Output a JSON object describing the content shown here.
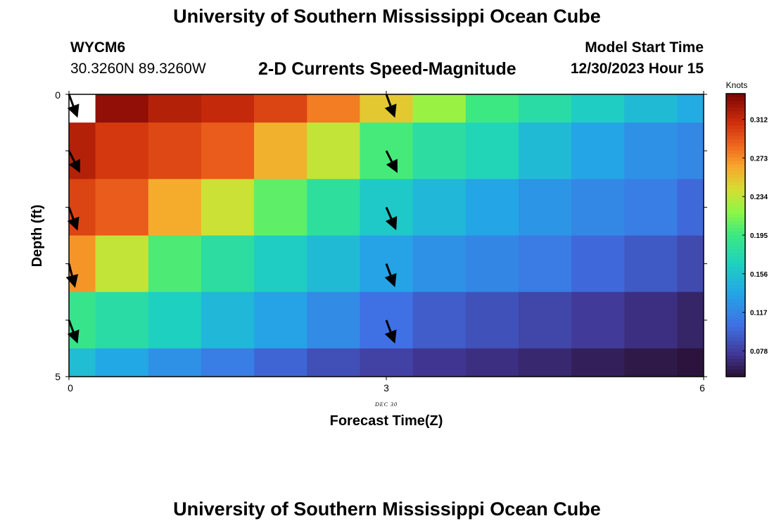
{
  "header": {
    "title": "University of Southern Mississippi Ocean Cube",
    "station_id": "WYCM6",
    "coordinates": "30.3260N  89.3260W",
    "subtitle": "2-D Currents Speed-Magnitude",
    "model_start_label": "Model Start Time",
    "model_start_value": "12/30/2023 Hour 15"
  },
  "footer": {
    "title": "University of Southern Mississippi Ocean Cube"
  },
  "chart_data": {
    "type": "heatmap",
    "title": "2-D Currents Speed-Magnitude",
    "xlabel": "Forecast Time(Z)",
    "ylabel": "Depth (ft)",
    "date_label": "DEC 30",
    "xlim": [
      0,
      6
    ],
    "ylim": [
      0,
      5
    ],
    "x_ticks": [
      "0",
      "3",
      "6"
    ],
    "y_ticks": [
      "0",
      "5"
    ],
    "colorbar": {
      "label": "Knots",
      "min": 0.052,
      "max": 0.338,
      "ticks": [
        0.312,
        0.273,
        0.234,
        0.195,
        0.156,
        0.117,
        0.078
      ]
    },
    "x_edges": [
      0,
      0.25,
      0.75,
      1.25,
      1.75,
      2.25,
      2.75,
      3.25,
      3.75,
      4.25,
      4.75,
      5.25,
      5.75,
      6
    ],
    "y_edges": [
      0,
      0.5,
      1.5,
      2.5,
      3.5,
      4.5,
      5
    ],
    "values": [
      [
        null,
        0.33,
        0.318,
        0.312,
        0.3,
        0.278,
        0.25,
        0.222,
        0.195,
        0.178,
        0.163,
        0.15,
        0.14
      ],
      [
        0.318,
        0.305,
        0.298,
        0.29,
        0.26,
        0.235,
        0.198,
        0.18,
        0.17,
        0.15,
        0.136,
        0.124,
        0.118
      ],
      [
        0.3,
        0.29,
        0.262,
        0.238,
        0.205,
        0.182,
        0.16,
        0.148,
        0.136,
        0.126,
        0.118,
        0.112,
        0.1
      ],
      [
        0.27,
        0.235,
        0.2,
        0.18,
        0.163,
        0.15,
        0.134,
        0.124,
        0.117,
        0.11,
        0.1,
        0.092,
        0.084
      ],
      [
        0.19,
        0.178,
        0.165,
        0.148,
        0.134,
        0.12,
        0.104,
        0.094,
        0.088,
        0.082,
        0.076,
        0.07,
        0.064
      ],
      [
        0.152,
        0.138,
        0.124,
        0.112,
        0.098,
        0.087,
        0.08,
        0.074,
        0.07,
        0.066,
        0.061,
        0.057,
        0.054
      ]
    ],
    "vectors": [
      {
        "x": 0,
        "depth": 0,
        "u": 0.35,
        "v": -0.94
      },
      {
        "x": 3,
        "depth": 0,
        "u": 0.35,
        "v": -0.94
      },
      {
        "x": 0,
        "depth": 1,
        "u": 0.45,
        "v": -0.89
      },
      {
        "x": 3,
        "depth": 1,
        "u": 0.45,
        "v": -0.89
      },
      {
        "x": 0,
        "depth": 2,
        "u": 0.35,
        "v": -0.94
      },
      {
        "x": 3,
        "depth": 2,
        "u": 0.4,
        "v": -0.92
      },
      {
        "x": 0,
        "depth": 3,
        "u": 0.25,
        "v": -0.97
      },
      {
        "x": 3,
        "depth": 3,
        "u": 0.35,
        "v": -0.94
      },
      {
        "x": 0,
        "depth": 4,
        "u": 0.35,
        "v": -0.94
      },
      {
        "x": 3,
        "depth": 4,
        "u": 0.35,
        "v": -0.94
      }
    ]
  }
}
